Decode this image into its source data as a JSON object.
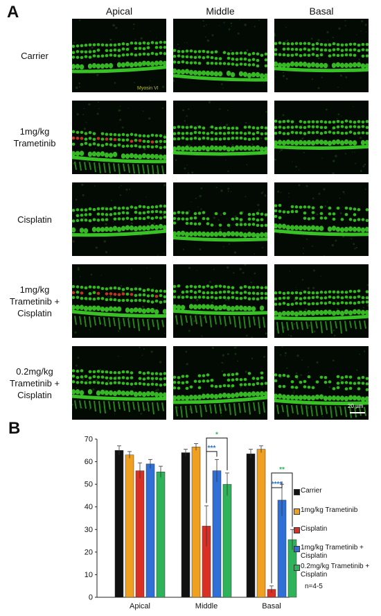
{
  "panel_a": {
    "letter": "A",
    "columns": [
      "Apical",
      "Middle",
      "Basal"
    ],
    "rows": [
      {
        "label": [
          "Carrier"
        ]
      },
      {
        "label": [
          "1mg/kg",
          "Trametinib"
        ]
      },
      {
        "label": [
          "Cisplatin"
        ]
      },
      {
        "label": [
          "1mg/kg",
          "Trametinib +",
          "Cisplatin"
        ]
      },
      {
        "label": [
          "0.2mg/kg",
          "Trametinib +",
          "Cisplatin"
        ]
      }
    ],
    "stain_label": "Myosin VI",
    "scale_bar": "20 µm"
  },
  "panel_b": {
    "letter": "B",
    "n_note": "n=4-5",
    "significance": {
      "middle_cis_vs_1mg": "***",
      "middle_cis_vs_02mg": "*",
      "basal_cis_vs_1mg": "****",
      "basal_cis_vs_02mg": "**"
    }
  },
  "chart_data": {
    "type": "bar",
    "categories": [
      "Apical",
      "Middle",
      "Basal"
    ],
    "ylim": [
      0,
      70
    ],
    "yticks": [
      0,
      10,
      20,
      30,
      40,
      50,
      60,
      70
    ],
    "series": [
      {
        "name": "Carrier",
        "color": "#111111",
        "values": [
          65,
          64,
          63.5
        ],
        "errors": [
          2,
          1.5,
          2
        ]
      },
      {
        "name": "1mg/kg Trametinib",
        "color": "#f0a020",
        "values": [
          63,
          66.5,
          65.5
        ],
        "errors": [
          1.5,
          1.5,
          1.5
        ]
      },
      {
        "name": "Cisplatin",
        "color": "#d93025",
        "values": [
          56,
          31.5,
          3.5
        ],
        "errors": [
          3.5,
          9,
          1.5
        ]
      },
      {
        "name": "1mg/kg Trametinib + Cisplatin",
        "color": "#2f6fd6",
        "values": [
          59,
          56,
          43
        ],
        "errors": [
          2,
          5,
          7
        ]
      },
      {
        "name": "0.2mg/kg Trametinib + Cisplatin",
        "color": "#2fb35a",
        "values": [
          55.5,
          50,
          25.5
        ],
        "errors": [
          2.5,
          5,
          4.5
        ]
      }
    ],
    "colors": {
      "sig_blue": "#2f6fd6",
      "sig_green": "#2fb35a",
      "tissue_green": "#3fd62a",
      "tissue_red": "#d94030"
    }
  }
}
